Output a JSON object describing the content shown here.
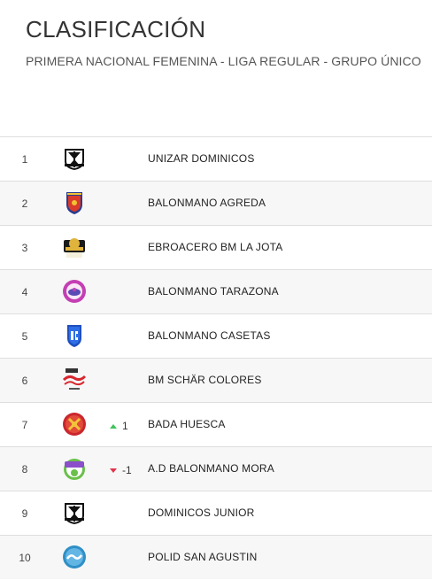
{
  "header": {
    "title": "CLASIFICACIÓN",
    "subtitle": "PRIMERA NACIONAL FEMENINA - LIGA REGULAR - GRUPO ÚNICO"
  },
  "standings": [
    {
      "position": "1",
      "team": "UNIZAR DOMINICOS",
      "logo_icon": "dominicos-crest-icon",
      "trend": "",
      "trend_dir": ""
    },
    {
      "position": "2",
      "team": "BALONMANO AGREDA",
      "logo_icon": "agreda-shield-icon",
      "trend": "",
      "trend_dir": ""
    },
    {
      "position": "3",
      "team": "EBROACERO BM LA JOTA",
      "logo_icon": "la-jota-crest-icon",
      "trend": "",
      "trend_dir": ""
    },
    {
      "position": "4",
      "team": "BALONMANO TARAZONA",
      "logo_icon": "tarazona-badge-icon",
      "trend": "",
      "trend_dir": ""
    },
    {
      "position": "5",
      "team": "BALONMANO CASETAS",
      "logo_icon": "casetas-shield-icon",
      "trend": "",
      "trend_dir": ""
    },
    {
      "position": "6",
      "team": "BM SCHÄR COLORES",
      "logo_icon": "schar-colores-logo-icon",
      "trend": "",
      "trend_dir": ""
    },
    {
      "position": "7",
      "team": "BADA HUESCA",
      "logo_icon": "bada-huesca-badge-icon",
      "trend": "1",
      "trend_dir": "up"
    },
    {
      "position": "8",
      "team": "A.D BALONMANO MORA",
      "logo_icon": "mora-badge-icon",
      "trend": "-1",
      "trend_dir": "down"
    },
    {
      "position": "9",
      "team": "DOMINICOS JUNIOR",
      "logo_icon": "dominicos-crest-icon",
      "trend": "",
      "trend_dir": ""
    },
    {
      "position": "10",
      "team": "POLID SAN AGUSTIN",
      "logo_icon": "san-agustin-badge-icon",
      "trend": "",
      "trend_dir": ""
    }
  ],
  "colors": {
    "trend_up": "#3fc35b",
    "trend_down": "#e2334a",
    "row_alt": "#f7f7f7",
    "border": "#dedede"
  }
}
